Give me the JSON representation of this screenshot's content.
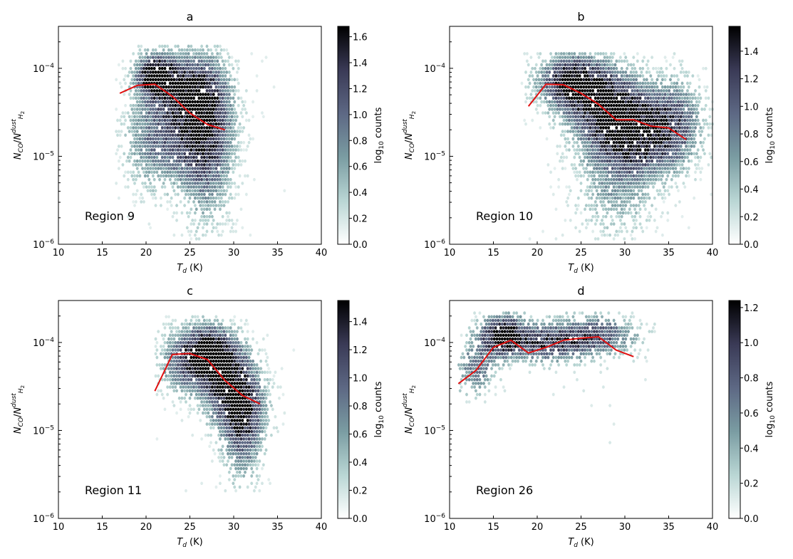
{
  "colors": {
    "median_line": "#e01010",
    "colormap": [
      "#ffffff",
      "#b9d6d4",
      "#7a9ca2",
      "#5d6884",
      "#3a3a56",
      "#000000"
    ]
  },
  "chart_data": [
    {
      "type": "hexbin",
      "title": "a",
      "region_label": "Region 9",
      "xlabel": "T_d (K)",
      "ylabel": "N_CO/N_H2^dust",
      "xlim": [
        10,
        40
      ],
      "ylim": [
        1e-06,
        0.0003
      ],
      "xticks": [
        10,
        15,
        20,
        25,
        30,
        35,
        40
      ],
      "yticks": [
        {
          "value": 1e-06,
          "label": "10^-6"
        },
        {
          "value": 1e-05,
          "label": "10^-5"
        },
        {
          "value": 0.0001,
          "label": "10^-4"
        }
      ],
      "colorbar": {
        "label": "log10 counts",
        "max": 1.68,
        "ticks": [
          0.0,
          0.2,
          0.4,
          0.6,
          0.8,
          1.0,
          1.2,
          1.4,
          1.6
        ]
      },
      "median_line": {
        "x": [
          17,
          19,
          21,
          23,
          25,
          27,
          29
        ],
        "y": [
          5.2e-05,
          6.4e-05,
          6.6e-05,
          4.8e-05,
          3.1e-05,
          2.3e-05,
          2e-05
        ]
      },
      "density_blobs": [
        {
          "x": 21,
          "y": 8.5e-05,
          "sx": 1.4,
          "sy": 0.15,
          "w": 1.6
        },
        {
          "x": 24,
          "y": 6e-05,
          "sx": 2.5,
          "sy": 0.25,
          "w": 1.1
        },
        {
          "x": 27,
          "y": 3.5e-05,
          "sx": 2.0,
          "sy": 0.4,
          "w": 0.95
        },
        {
          "x": 24,
          "y": 1.6e-05,
          "sx": 2.8,
          "sy": 0.35,
          "w": 0.85
        },
        {
          "x": 27,
          "y": 7e-06,
          "sx": 2.0,
          "sy": 0.5,
          "w": 0.6
        },
        {
          "x": 20,
          "y": 1.5e-05,
          "sx": 1.8,
          "sy": 0.4,
          "w": 0.45
        }
      ],
      "extent": {
        "x": [
          16.5,
          36
        ],
        "y": [
          1.1e-06,
          0.00019
        ]
      }
    },
    {
      "type": "hexbin",
      "title": "b",
      "region_label": "Region 10",
      "xlabel": "T_d (K)",
      "ylabel": "N_CO/N_H2^dust",
      "xlim": [
        10,
        40
      ],
      "ylim": [
        1e-06,
        0.0003
      ],
      "xticks": [
        10,
        15,
        20,
        25,
        30,
        35,
        40
      ],
      "yticks": [
        {
          "value": 1e-06,
          "label": "10^-6"
        },
        {
          "value": 1e-05,
          "label": "10^-5"
        },
        {
          "value": 0.0001,
          "label": "10^-4"
        }
      ],
      "colorbar": {
        "label": "log10 counts",
        "max": 1.58,
        "ticks": [
          0.0,
          0.2,
          0.4,
          0.6,
          0.8,
          1.0,
          1.2,
          1.4
        ]
      },
      "median_line": {
        "x": [
          19,
          21,
          23,
          25,
          27,
          29,
          31,
          33,
          35,
          37
        ],
        "y": [
          3.7e-05,
          6.6e-05,
          6.5e-05,
          5.2e-05,
          3.9e-05,
          2.6e-05,
          2.6e-05,
          2.2e-05,
          2.1e-05,
          1.55e-05
        ]
      },
      "density_blobs": [
        {
          "x": 24,
          "y": 7e-05,
          "sx": 2.5,
          "sy": 0.2,
          "w": 1.5
        },
        {
          "x": 28,
          "y": 3.5e-05,
          "sx": 3.0,
          "sy": 0.3,
          "w": 1.25
        },
        {
          "x": 32,
          "y": 1.8e-05,
          "sx": 3.0,
          "sy": 0.3,
          "w": 1.05
        },
        {
          "x": 29,
          "y": 6e-06,
          "sx": 3.0,
          "sy": 0.45,
          "w": 0.55
        },
        {
          "x": 36,
          "y": 2.5e-05,
          "sx": 2.0,
          "sy": 0.35,
          "w": 0.7
        }
      ],
      "extent": {
        "x": [
          18,
          40
        ],
        "y": [
          1.1e-06,
          0.00016
        ]
      }
    },
    {
      "type": "hexbin",
      "title": "c",
      "region_label": "Region 11",
      "xlabel": "T_d (K)",
      "ylabel": "N_CO/N_H2^dust",
      "xlim": [
        10,
        40
      ],
      "ylim": [
        1e-06,
        0.0003
      ],
      "xticks": [
        10,
        15,
        20,
        25,
        30,
        35,
        40
      ],
      "yticks": [
        {
          "value": 1e-06,
          "label": "10^-6"
        },
        {
          "value": 1e-05,
          "label": "10^-5"
        },
        {
          "value": 0.0001,
          "label": "10^-4"
        }
      ],
      "colorbar": {
        "label": "log10 counts",
        "max": 1.55,
        "ticks": [
          0.0,
          0.2,
          0.4,
          0.6,
          0.8,
          1.0,
          1.2,
          1.4
        ]
      },
      "median_line": {
        "x": [
          21,
          23,
          25,
          27,
          29,
          31,
          33
        ],
        "y": [
          2.8e-05,
          7.3e-05,
          7.5e-05,
          6.4e-05,
          3.7e-05,
          2.5e-05,
          2e-05
        ]
      },
      "density_blobs": [
        {
          "x": 27,
          "y": 7.5e-05,
          "sx": 1.8,
          "sy": 0.2,
          "w": 1.5
        },
        {
          "x": 29,
          "y": 4e-05,
          "sx": 2.0,
          "sy": 0.3,
          "w": 1.25
        },
        {
          "x": 31,
          "y": 1.8e-05,
          "sx": 1.8,
          "sy": 0.3,
          "w": 1.0
        },
        {
          "x": 31,
          "y": 7e-06,
          "sx": 1.5,
          "sy": 0.35,
          "w": 0.55
        },
        {
          "x": 24,
          "y": 6e-05,
          "sx": 1.8,
          "sy": 0.25,
          "w": 0.7
        }
      ],
      "extent": {
        "x": [
          21,
          38.5
        ],
        "y": [
          2e-06,
          0.0002
        ]
      }
    },
    {
      "type": "hexbin",
      "title": "d",
      "region_label": "Region 26",
      "xlabel": "T_d (K)",
      "ylabel": "N_CO/N_H2^dust",
      "xlim": [
        10,
        40
      ],
      "ylim": [
        1e-06,
        0.0003
      ],
      "xticks": [
        10,
        15,
        20,
        25,
        30,
        35,
        40
      ],
      "yticks": [
        {
          "value": 1e-06,
          "label": "10^-6"
        },
        {
          "value": 1e-05,
          "label": "10^-5"
        },
        {
          "value": 0.0001,
          "label": "10^-4"
        }
      ],
      "colorbar": {
        "label": "log10 counts",
        "max": 1.24,
        "ticks": [
          0.0,
          0.2,
          0.4,
          0.6,
          0.8,
          1.0,
          1.2
        ]
      },
      "median_line": {
        "x": [
          11,
          13,
          15,
          17,
          19,
          21,
          23,
          25,
          27,
          29,
          31
        ],
        "y": [
          3.4e-05,
          4.8e-05,
          8.8e-05,
          0.000106,
          7.6e-05,
          8.8e-05,
          0.000106,
          0.000112,
          0.000116,
          8.2e-05,
          6.9e-05
        ]
      },
      "density_blobs": [
        {
          "x": 16,
          "y": 0.00012,
          "sx": 1.8,
          "sy": 0.15,
          "w": 1.2
        },
        {
          "x": 21,
          "y": 0.0001,
          "sx": 3.0,
          "sy": 0.15,
          "w": 0.85
        },
        {
          "x": 27,
          "y": 0.00012,
          "sx": 3.0,
          "sy": 0.15,
          "w": 0.75
        },
        {
          "x": 13,
          "y": 5e-05,
          "sx": 1.5,
          "sy": 0.2,
          "w": 0.6
        }
      ],
      "extent": {
        "x": [
          11,
          33.5
        ],
        "y": [
          7e-06,
          0.00023
        ]
      }
    }
  ]
}
